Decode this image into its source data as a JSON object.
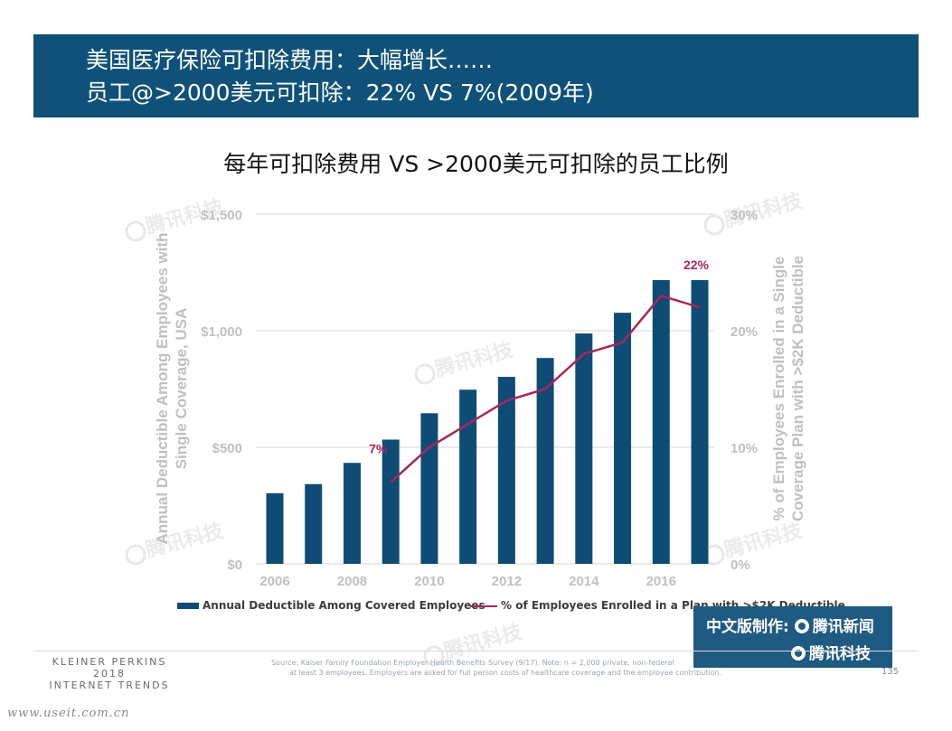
{
  "banner": {
    "line1": "美国医疗保险可扣除费用：大幅增长……",
    "line2": "员工@>2000美元可扣除：22% VS 7%(2009年)"
  },
  "chart_title": "每年可扣除费用 VS  >2000美元可扣除的员工比例",
  "chart_data": {
    "type": "bar",
    "x": [
      2006,
      2007,
      2008,
      2009,
      2010,
      2011,
      2012,
      2013,
      2014,
      2015,
      2016,
      2017
    ],
    "series": [
      {
        "name": "Annual Deductible Among Covered Employees",
        "type": "bar",
        "axis": "left",
        "color": "#0f4c75",
        "values": [
          303,
          342,
          433,
          533,
          646,
          747,
          802,
          883,
          988,
          1077,
          1217,
          1217
        ]
      },
      {
        "name": "% of Employees Enrolled in a Plan with >$2K Deductible",
        "type": "line",
        "axis": "right",
        "color": "#a8265c",
        "x": [
          2009,
          2010,
          2011,
          2012,
          2013,
          2014,
          2015,
          2016,
          2017
        ],
        "values": [
          7,
          10,
          12,
          14,
          15,
          18,
          19,
          23,
          22
        ]
      }
    ],
    "annotations": [
      {
        "text": "7%",
        "x": 2009,
        "value": 7
      },
      {
        "text": "22%",
        "x": 2017,
        "value": 22
      }
    ],
    "y_left": {
      "label": "Annual Deductible Among Employees with Single Coverage, USA",
      "label_line1": "Annual Deductible Among Employees with",
      "label_line2": "Single Coverage, USA",
      "range": [
        0,
        1500
      ],
      "ticks": [
        "$0",
        "$500",
        "$1,000",
        "$1,500"
      ],
      "tick_values": [
        0,
        500,
        1000,
        1500
      ]
    },
    "y_right": {
      "label": "% of Employees Enrolled in a Single Coverage Plan with >$2K Deductible",
      "label_line1": "% of Employees Enrolled in a Single",
      "label_line2": "Coverage Plan with >$2K Deductible",
      "range": [
        0,
        30
      ],
      "ticks": [
        "0%",
        "10%",
        "20%",
        "30%"
      ],
      "tick_values": [
        0,
        10,
        20,
        30
      ]
    },
    "x_ticks": [
      "2006",
      "2008",
      "2010",
      "2012",
      "2014",
      "2016"
    ],
    "x_tick_values": [
      2006,
      2008,
      2010,
      2012,
      2014,
      2016
    ],
    "grid": true,
    "legend_position": "bottom"
  },
  "legend": {
    "bar_label": "Annual Deductible Among Covered Employees",
    "line_label": "% of Employees Enrolled in a Plan with >$2K Deductible"
  },
  "badge": {
    "row1": "中文版制作:",
    "brand1": "腾讯新闻",
    "brand2": "腾讯科技"
  },
  "footer": {
    "brand_line1": "KLEINER PERKINS",
    "brand_line2": "2018",
    "brand_line3": "INTERNET TRENDS",
    "source_line1": "Source: Kaiser Family Foundation Employer Health Benefits Survey (9/17).  Note: n = 2,000 private, non-federal",
    "source_line2": "at least 3 employees. Employers are asked for full person costs of healthcare coverage and the employee contribution.",
    "page_number": "135",
    "url": "www.useit.com.cn"
  },
  "watermark_text": "腾讯科技",
  "colors": {
    "banner_bg": "#0f5179",
    "bar": "#0f4c75",
    "line": "#a8265c",
    "axis_text": "#c0c0c0",
    "badge_bg": "#1f5a82"
  }
}
